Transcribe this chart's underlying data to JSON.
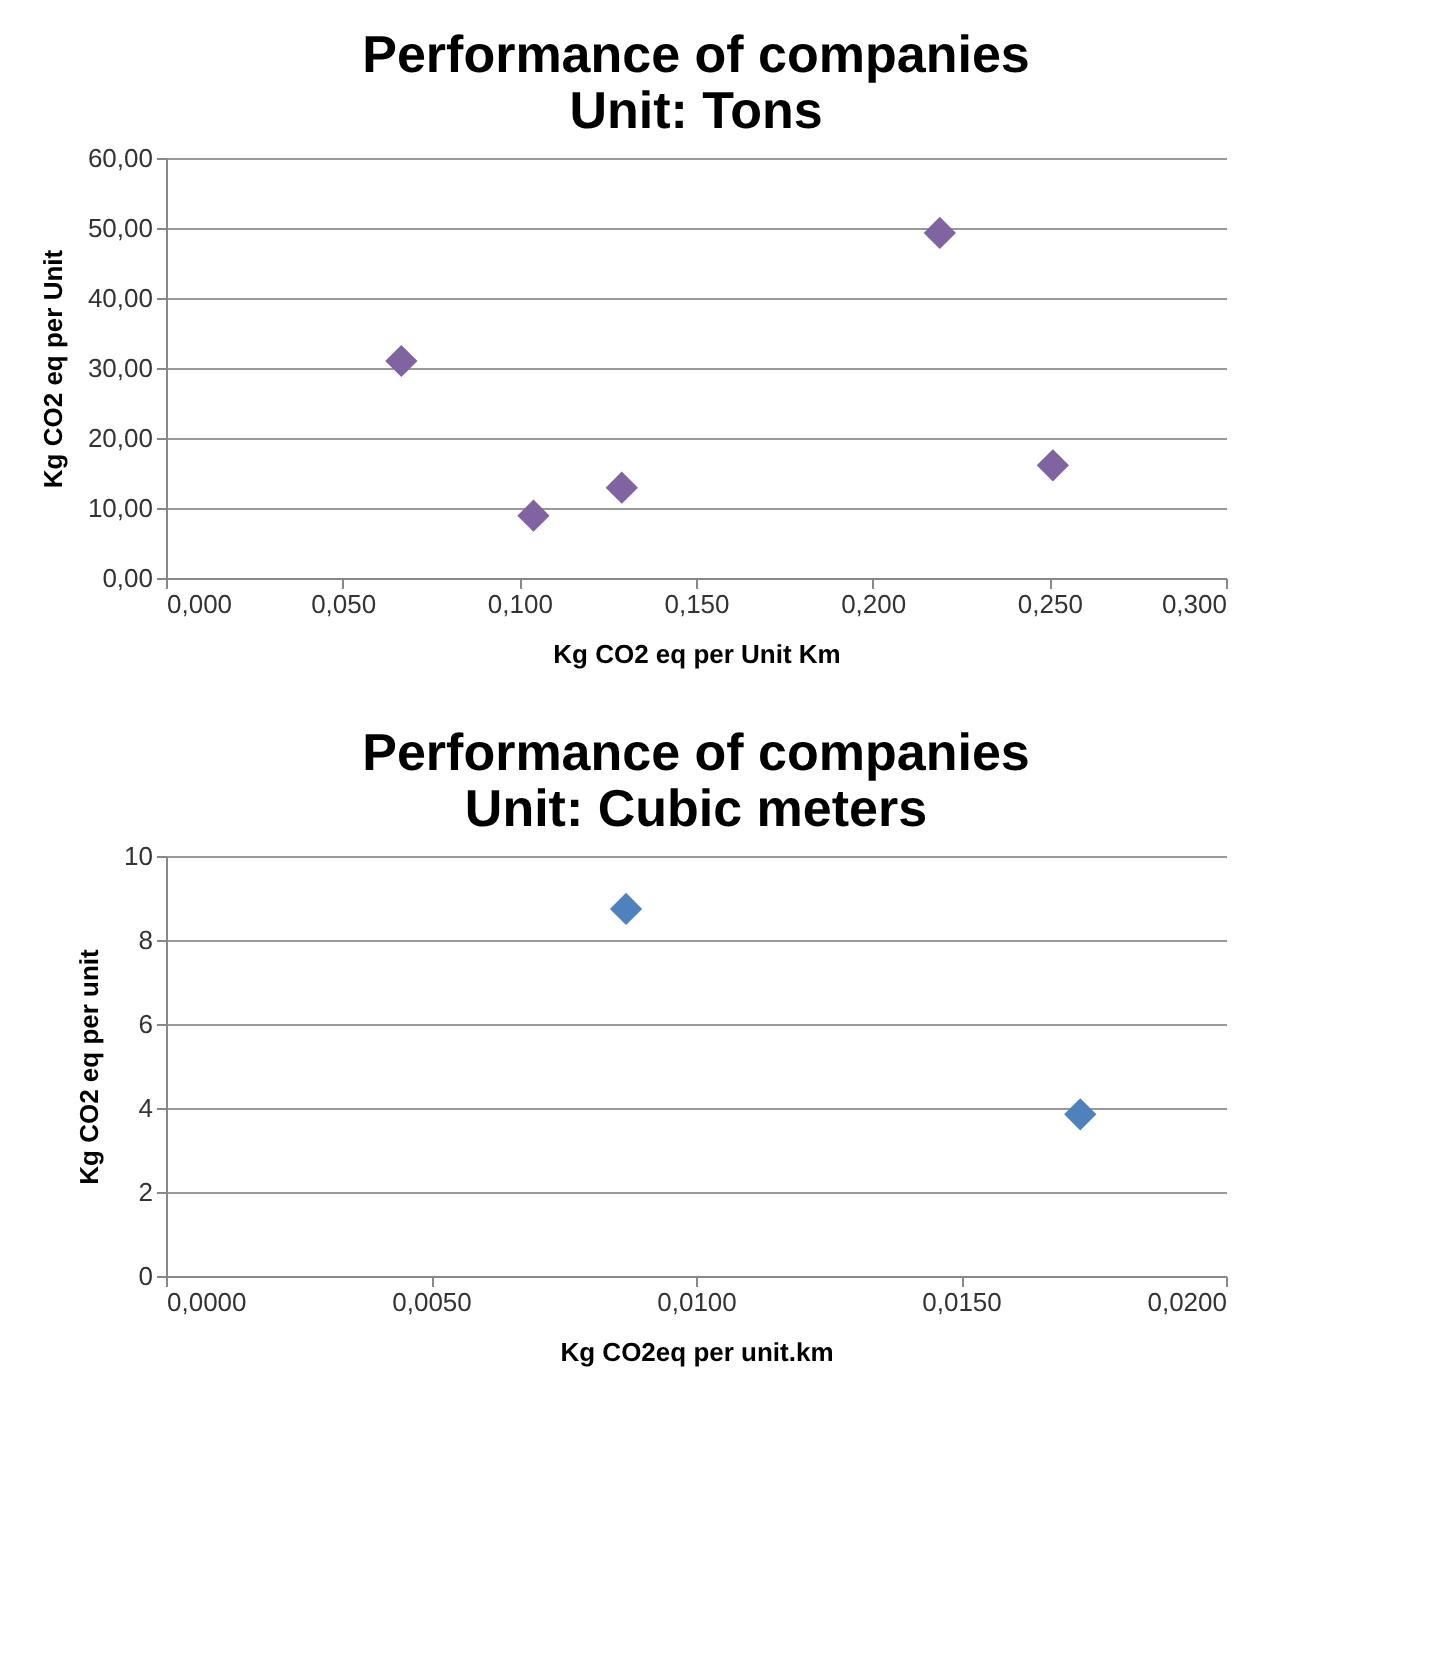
{
  "chart_data": [
    {
      "type": "scatter",
      "title": "Performance of companies\nUnit: Tons",
      "xlabel": "Kg CO2 eq per Unit Km",
      "ylabel": "Kg CO2 eq per Unit",
      "series": [
        {
          "color": "#8064a2",
          "x": [
            0.0666,
            0.104,
            0.129,
            0.219,
            0.251
          ],
          "values": [
            31.0,
            8.9,
            12.9,
            49.3,
            16.1
          ]
        }
      ],
      "xlim": [
        0,
        0.3
      ],
      "xticks": [
        {
          "value": 0,
          "label": "0,000"
        },
        {
          "value": 0.05,
          "label": "0,050"
        },
        {
          "value": 0.1,
          "label": "0,100"
        },
        {
          "value": 0.15,
          "label": "0,150"
        },
        {
          "value": 0.2,
          "label": "0,200"
        },
        {
          "value": 0.25,
          "label": "0,250"
        },
        {
          "value": 0.3,
          "label": "0,300"
        }
      ],
      "ylim": [
        0,
        60
      ],
      "yticks": [
        {
          "value": 0,
          "label": "0,00"
        },
        {
          "value": 10,
          "label": "10,00"
        },
        {
          "value": 20,
          "label": "20,00"
        },
        {
          "value": 30,
          "label": "30,00"
        },
        {
          "value": 40,
          "label": "40,00"
        },
        {
          "value": 50,
          "label": "50,00"
        },
        {
          "value": 60,
          "label": "60,00"
        }
      ],
      "grid": "y",
      "legend": false,
      "marker": "diamond"
    },
    {
      "type": "scatter",
      "title": "Performance of companies\nUnit: Cubic meters",
      "xlabel": "Kg CO2eq per unit.km",
      "ylabel": "Kg CO2 eq per unit",
      "series": [
        {
          "color": "#4f81bd",
          "x": [
            0.00868,
            0.01725
          ],
          "values": [
            8.74,
            3.85
          ]
        }
      ],
      "xlim": [
        0,
        0.02
      ],
      "xticks": [
        {
          "value": 0,
          "label": "0,0000"
        },
        {
          "value": 0.005,
          "label": "0,0050"
        },
        {
          "value": 0.01,
          "label": "0,0100"
        },
        {
          "value": 0.015,
          "label": "0,0150"
        },
        {
          "value": 0.02,
          "label": "0,0200"
        }
      ],
      "ylim": [
        0,
        10
      ],
      "yticks": [
        0,
        2,
        4,
        6,
        8,
        10
      ],
      "grid": "y",
      "legend": false,
      "marker": "diamond"
    }
  ]
}
